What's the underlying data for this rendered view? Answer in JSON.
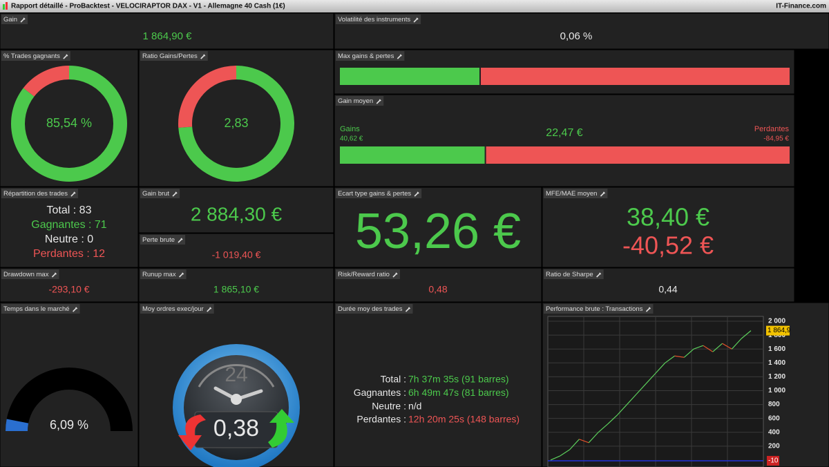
{
  "window": {
    "title": "Rapport détaillé - ProBacktest - VELOCIRAPTOR DAX - V1 - Allemagne 40 Cash (1€)",
    "brand": "IT-Finance.com"
  },
  "panels": {
    "gain": {
      "title": "Gain",
      "value": "1 864,90 €"
    },
    "volatility": {
      "title": "Volatilité des instruments",
      "value": "0,06 %"
    },
    "win_rate": {
      "title": "% Trades gagnants",
      "value": 85.54,
      "label": "85,54 %"
    },
    "ratio": {
      "title": "Ratio Gains/Pertes",
      "value": 2.83,
      "label": "2,83"
    },
    "max_gains": {
      "title": "Max gains & pertes"
    },
    "avg_gain": {
      "title": "Gain moyen",
      "value": "22,47 €",
      "gains": {
        "name": "Gains",
        "value": 40.62,
        "label": "40,62 €"
      },
      "losses": {
        "name": "Perdantes",
        "value": -84.95,
        "label": "-84,95 €"
      }
    },
    "distribution": {
      "title": "Répartition des trades",
      "lines": [
        "Total : 83",
        "Gagnantes : 71",
        "Neutre : 0",
        "Perdantes : 12"
      ]
    },
    "gross_gain": {
      "title": "Gain brut",
      "value": "2 884,30 €"
    },
    "gross_loss": {
      "title": "Perte brute",
      "value": "-1 019,40 €"
    },
    "std_dev": {
      "title": "Ecart type gains & pertes",
      "value": "53,26 €"
    },
    "mfe_mae": {
      "title": "MFE/MAE moyen",
      "mfe": "38,40 €",
      "mae": "-40,52 €"
    },
    "drawdown": {
      "title": "Drawdown max",
      "value": "-293,10 €"
    },
    "runup": {
      "title": "Runup max",
      "value": "1 865,10 €"
    },
    "risk_reward": {
      "title": "Risk/Reward ratio",
      "value": "0,48"
    },
    "sharpe": {
      "title": "Ratio de Sharpe",
      "value": "0,44"
    },
    "time_in_market": {
      "title": "Temps dans le marché",
      "value": 6.09,
      "label": "6,09 %"
    },
    "orders_per_day": {
      "title": "Moy ordres exec/jour",
      "value": "0,38",
      "dial": "24"
    },
    "duration": {
      "title": "Durée moy des trades",
      "rows": [
        {
          "label": "Total :",
          "value": "7h 37m 35s (91 barres)"
        },
        {
          "label": "Gagnantes :",
          "value": "6h 49m 47s (81 barres)"
        },
        {
          "label": "Neutre :",
          "value": "n/d"
        },
        {
          "label": "Perdantes :",
          "value": "12h 20m 25s (148 barres)"
        }
      ]
    },
    "performance": {
      "title": "Performance brute : Transactions",
      "chart_data": {
        "type": "line",
        "values": [
          0,
          60,
          150,
          300,
          250,
          400,
          520,
          650,
          800,
          950,
          1100,
          1250,
          1400,
          1500,
          1480,
          1600,
          1650,
          1560,
          1680,
          1600,
          1750,
          1864.9
        ],
        "last_label": "1 864,9",
        "baseline": -10,
        "ylim": [
          -100,
          2070
        ],
        "yticks": [
          {
            "value": 2000,
            "label": "2 000"
          },
          {
            "value": 1800,
            "label": "1 800"
          },
          {
            "value": 1600,
            "label": "1 600"
          },
          {
            "value": 1400,
            "label": "1 400"
          },
          {
            "value": 1200,
            "label": "1 200"
          },
          {
            "value": 1000,
            "label": "1 000"
          },
          800,
          600,
          400,
          200
        ]
      }
    }
  }
}
